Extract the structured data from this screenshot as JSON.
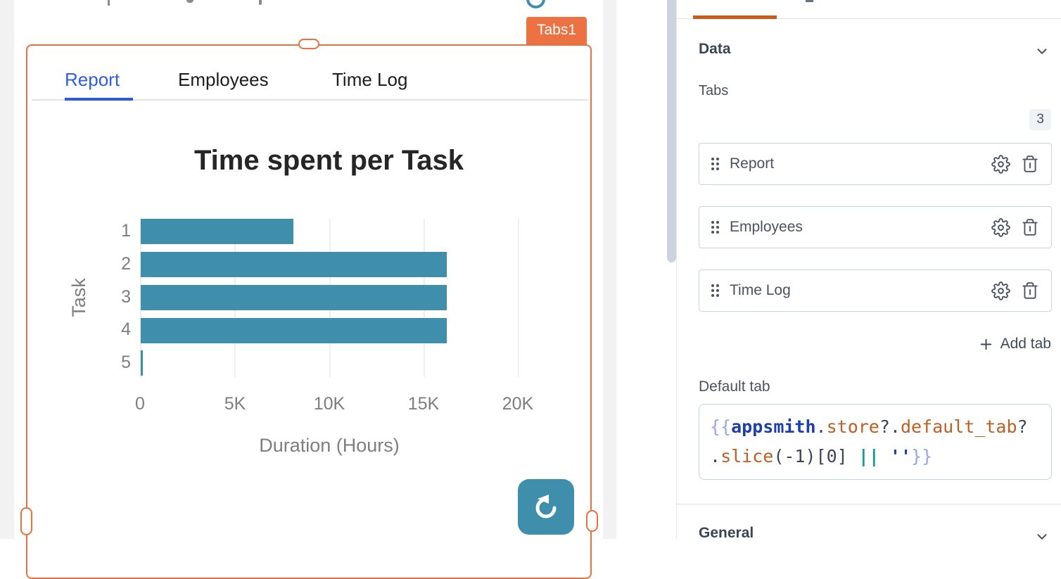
{
  "canvas": {
    "widget_name": "Tabs1",
    "widget_tabs": {
      "items": [
        "Report",
        "Employees",
        "Time Log"
      ],
      "active": "Report"
    }
  },
  "chart_data": {
    "type": "bar",
    "orientation": "horizontal",
    "title": "Time spent per Task",
    "categories": [
      "1",
      "2",
      "3",
      "4",
      "5"
    ],
    "values": [
      8100,
      16200,
      16200,
      16200,
      100
    ],
    "xlabel": "Duration (Hours)",
    "ylabel": "Task",
    "xlim": [
      0,
      20000
    ],
    "x_ticks": [
      "0",
      "5K",
      "10K",
      "15K",
      "20K"
    ],
    "grid": true,
    "legend": false,
    "bar_color": "#3E8EAC"
  },
  "panel": {
    "data_section": {
      "title": "Data"
    },
    "tabs_property": {
      "label": "Tabs",
      "count": "3",
      "items": [
        {
          "label": "Report"
        },
        {
          "label": "Employees"
        },
        {
          "label": "Time Log"
        }
      ],
      "add_button_label": "Add tab"
    },
    "default_tab": {
      "label": "Default tab",
      "code": "{{appsmith.store?.default_tab?.slice(-1)[0] || ''}}",
      "lines": [
        [
          {
            "t": "{{",
            "c": "mustache"
          },
          {
            "t": "appsmith",
            "c": "navy"
          },
          {
            "t": ".",
            "c": "plain"
          },
          {
            "t": "store",
            "c": "orange"
          },
          {
            "t": "?.",
            "c": "plain"
          },
          {
            "t": "default_tab",
            "c": "orange"
          },
          {
            "t": "?",
            "c": "plain"
          }
        ],
        [
          {
            "t": ".",
            "c": "plain"
          },
          {
            "t": "slice",
            "c": "orange"
          },
          {
            "t": "(-1)[0]",
            "c": "plain"
          },
          {
            "t": " ",
            "c": "plain"
          },
          {
            "t": "||",
            "c": "teal"
          },
          {
            "t": " ",
            "c": "plain"
          },
          {
            "t": "''",
            "c": "navy"
          },
          {
            "t": "}}",
            "c": "mustache"
          }
        ]
      ]
    },
    "general_section": {
      "title": "General"
    }
  },
  "colors": {
    "selection_orange": "#ED6F3E",
    "pane_tab_orange": "#CB5A1D",
    "bar_teal": "#3E8EAC",
    "active_tab_blue": "#2D5CE5",
    "canvas_gray": "#F2F2F2"
  }
}
